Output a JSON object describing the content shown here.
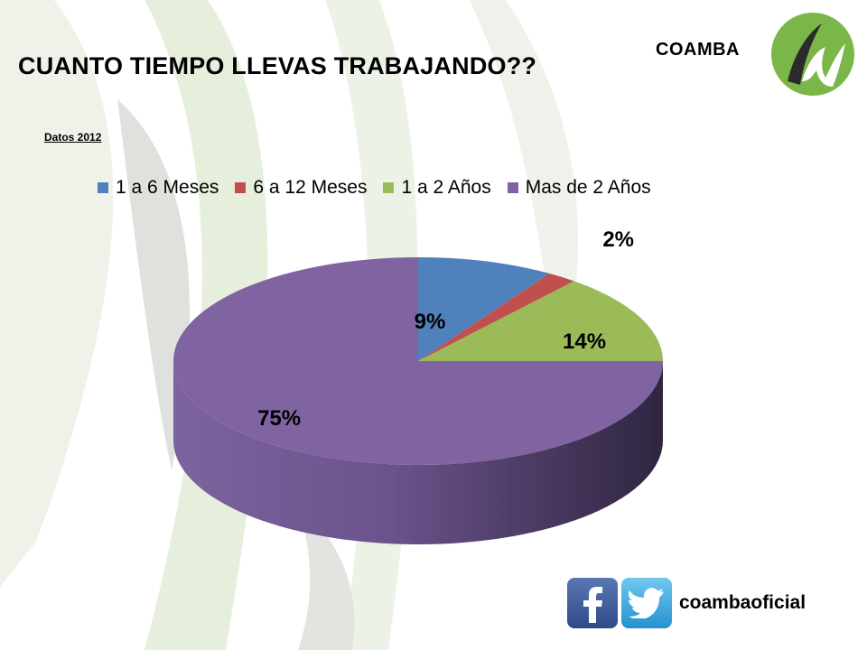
{
  "header": {
    "title": "CUANTO TIEMPO LLEVAS TRABAJANDO??",
    "subtitle": "Datos 2012",
    "brand": "COAMBA"
  },
  "footer": {
    "handle": "coambaoficial",
    "icons": [
      "facebook-icon",
      "twitter-icon"
    ]
  },
  "chart_data": {
    "type": "pie",
    "title": "CUANTO TIEMPO LLEVAS TRABAJANDO??",
    "legend_position": "top",
    "categories": [
      "1 a 6 Meses",
      "6 a 12 Meses",
      "1 a 2 Años",
      "Mas de 2 Años"
    ],
    "values": [
      9,
      2,
      14,
      75
    ],
    "labels": [
      "9%",
      "2%",
      "14%",
      "75%"
    ],
    "colors": [
      "#4f81bd",
      "#c0504d",
      "#9bbb59",
      "#8064a2"
    ]
  }
}
